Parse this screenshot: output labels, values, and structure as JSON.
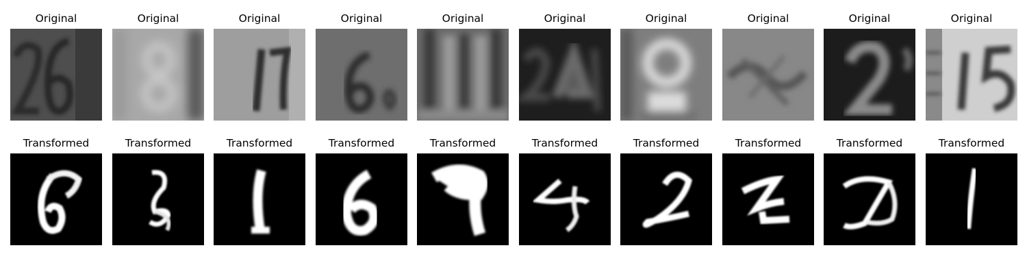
{
  "rows": [
    {
      "title": "Original",
      "tiles": [
        {
          "content": "26"
        },
        {
          "content": "8"
        },
        {
          "content": "17"
        },
        {
          "content": "6"
        },
        {
          "content": "11"
        },
        {
          "content": "24"
        },
        {
          "content": "9"
        },
        {
          "content": "x"
        },
        {
          "content": "2"
        },
        {
          "content": "15"
        }
      ]
    },
    {
      "title": "Transformed",
      "tiles": [
        {
          "content": "6"
        },
        {
          "content": "2"
        },
        {
          "content": "1"
        },
        {
          "content": "6"
        },
        {
          "content": "7"
        },
        {
          "content": "4"
        },
        {
          "content": "2"
        },
        {
          "content": "Z"
        },
        {
          "content": "D"
        },
        {
          "content": "1"
        }
      ]
    }
  ]
}
